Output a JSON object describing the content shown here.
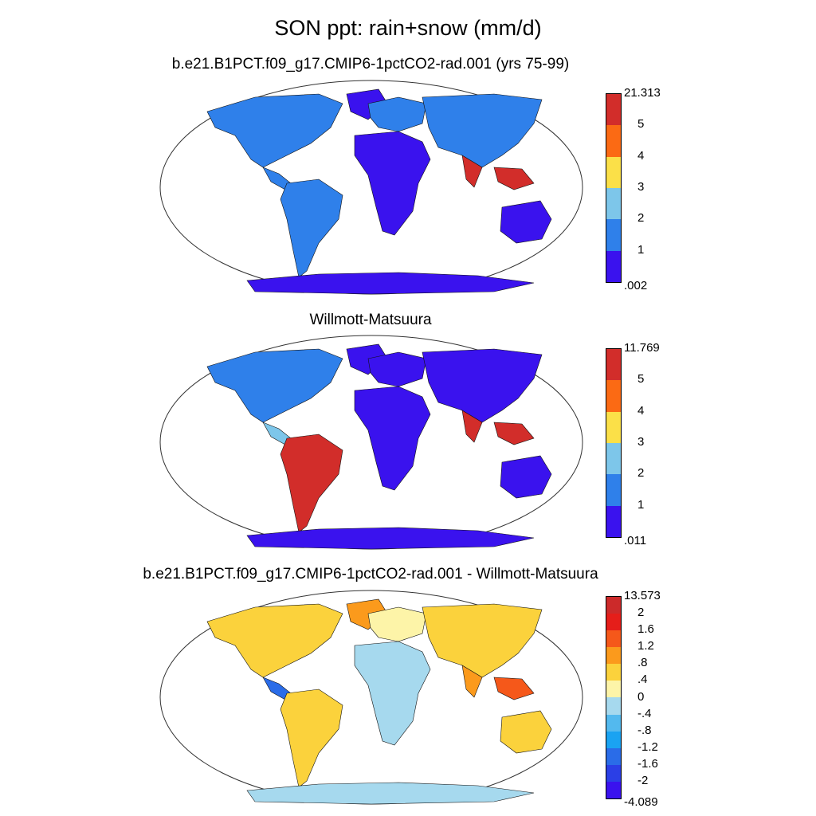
{
  "title": "SON ppt: rain+snow (mm/d)",
  "panels": [
    {
      "title": "b.e21.B1PCT.f09_g17.CMIP6-1pctCO2-rad.001 (yrs 75-99)",
      "colorbar": {
        "labels": [
          ".002",
          "1",
          "2",
          "3",
          "4",
          "5",
          "21.313"
        ],
        "colors": [
          "#3a12ee",
          "#2f80ea",
          "#7dc6ea",
          "#fbe048",
          "#fb6a14",
          "#d22d2a"
        ]
      }
    },
    {
      "title": "Willmott-Matsuura",
      "colorbar": {
        "labels": [
          ".011",
          "1",
          "2",
          "3",
          "4",
          "5",
          "11.769"
        ],
        "colors": [
          "#3a12ee",
          "#2f80ea",
          "#7dc6ea",
          "#fbe048",
          "#fb6a14",
          "#d22d2a"
        ]
      }
    },
    {
      "title": "b.e21.B1PCT.f09_g17.CMIP6-1pctCO2-rad.001 - Willmott-Matsuura",
      "colorbar": {
        "labels": [
          "-4.089",
          "-2",
          "-1.6",
          "-1.2",
          "-.8",
          "-.4",
          "0",
          ".4",
          ".8",
          "1.2",
          "1.6",
          "2",
          "13.573"
        ],
        "colors": [
          "#3a12ee",
          "#2b3fe6",
          "#2a6ce8",
          "#1aa3f2",
          "#53b9ee",
          "#a6d9ee",
          "#fdf4a8",
          "#fbd23c",
          "#fb9a1c",
          "#f5581a",
          "#e51e1a",
          "#cc2a2a"
        ]
      }
    }
  ]
}
